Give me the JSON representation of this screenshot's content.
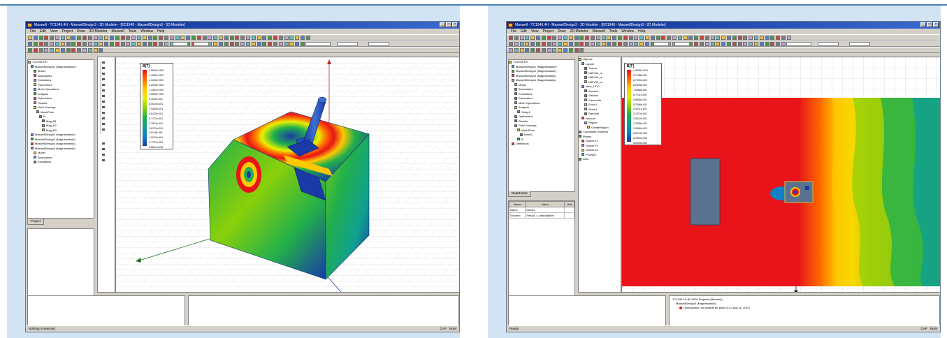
{
  "left": {
    "window_title": "Maxwell - TC1949.4H - MaxwellDesign3 - 3D Modeler - [ED1949 - MaxwellDesign3 - 3D Modeler]",
    "menu": [
      "File",
      "Edit",
      "View",
      "Project",
      "Draw",
      "3D Modeler",
      "Maxwell",
      "Tools",
      "Window",
      "Help"
    ],
    "tree_items": [
      "TC1949.4H*",
      "MaxwellDesign1 (Magnetostatic)*",
      "Model",
      "Boundaries",
      "Excitations",
      "Parameters",
      "Mesh Operations",
      "Analysis",
      "Optimetrics",
      "Results",
      "Field Overlays",
      "MeshPlots",
      "B",
      "Mag_B1",
      "Mag_B2",
      "Mag_B3",
      "MaxwellDesign2 (Magnetostatic)",
      "MaxwellDesign3 (Magnetostatic)",
      "MaxwellDesign4 (Magnetostatic)",
      "MaxwellDesign5 (Magnetostatic)",
      "Model",
      "Boundaries",
      "Excitations"
    ],
    "tab_label": "Project",
    "legend_title": "B[T]",
    "legend_values": [
      "1.5000e+000",
      "1.4000e+000",
      "1.3100e+000",
      "1.2250e+000",
      "1.1431e+000",
      "1.0250e+000",
      "9.3911e-001",
      "8.5023e-001",
      "7.5464e-001",
      "6.8125e-001",
      "5.7171e-001",
      "4.7521e-001",
      "3.8173e-001",
      "2.9116e-001",
      "1.9123e-001",
      "9.7707e-002",
      "5.8641e-003"
    ],
    "status_text": "Nothing is selected",
    "status_indicators": [
      "CAP",
      "NUM"
    ]
  },
  "right": {
    "window_title": "Maxwell - TC1949.4H - MaxwellDesign3 - 2D Modeler - [ED1949 - MaxwellDesign3 - 2D Modeler]",
    "menu": [
      "File",
      "Edit",
      "View",
      "Project",
      "Draw",
      "2D Modeler",
      "Maxwell",
      "Tools",
      "Window",
      "Help"
    ],
    "tree_items": [
      "TC1949.4H*",
      "MaxwellDesign1 (Magnetostatic)*",
      "MaxwellDesign2 (Magnetostatic)",
      "MaxwellDesign3 (Magnetostatic)",
      "MaxwellDesign4 (Magnetostatic)",
      "Model",
      "Boundaries",
      "Excitations",
      "Parameters",
      "Mesh Operations",
      "Analysis",
      "Setup1",
      "Optimetrics",
      "Results",
      "Field Overlays",
      "MeshPlots",
      "Mesh1",
      "B",
      "Definitions"
    ],
    "objects_tree": [
      "Objects",
      "copper",
      "Source",
      "NdFe30_rs",
      "NdFe30_rs",
      "NdFe30_rs",
      "steel_1010",
      "Armatur",
      "Gehaus",
      "Caserchte",
      "Sirius1",
      "Sirius2",
      "Randoht",
      "vacuum",
      "Region",
      "CreateRegion",
      "Coordinate Systems",
      "Planes",
      "Global:XY",
      "Global:YZ",
      "Global:XZ",
      "PLANE1",
      "Lists"
    ],
    "tab_label": "Data/Fields",
    "props_headers": [
      "Name",
      "Value",
      "Unit"
    ],
    "props_rows": [
      {
        "name": "Name",
        "value": "Mesh1"
      },
      {
        "name": "Solution",
        "value": "Setup1 : LastAdaptive"
      }
    ],
    "legend_title": "B[T]",
    "legend_values": [
      "1.9000e+001",
      "9.7785e-001",
      "8.7090e-001",
      "8.2353e-001",
      "7.5086e-001",
      "6.7211e-001",
      "5.9850e-001",
      "5.2286e-001",
      "4.4011e-001",
      "3.7321e-001",
      "3.0512e-001",
      "2.2355e-001",
      "1.5980e-001",
      "8.6014e-002",
      "5.2500e-002",
      "8.0000e-003"
    ],
    "message_lines": [
      "TC1949.4H (E:/2009 Projects (Maxwell))",
      "MaxwellDesign3 (Magnetostatic)",
      "Optimization not suitable for point (2:22 Aug 11, 2007)"
    ],
    "status_text": "Ready",
    "status_indicators": [
      "CAP",
      "NUM"
    ]
  },
  "colors": {
    "panel_bg": "#d2e4f4",
    "frame_blue": "#4a7fb8",
    "field_red": "#e8141a",
    "field_blue": "#1a3aa8",
    "magnet_gray": "#5a7290"
  },
  "icons": [
    "app-icon",
    "minimize-icon",
    "maximize-icon",
    "close-icon",
    "folder-icon",
    "arrow-icon"
  ]
}
